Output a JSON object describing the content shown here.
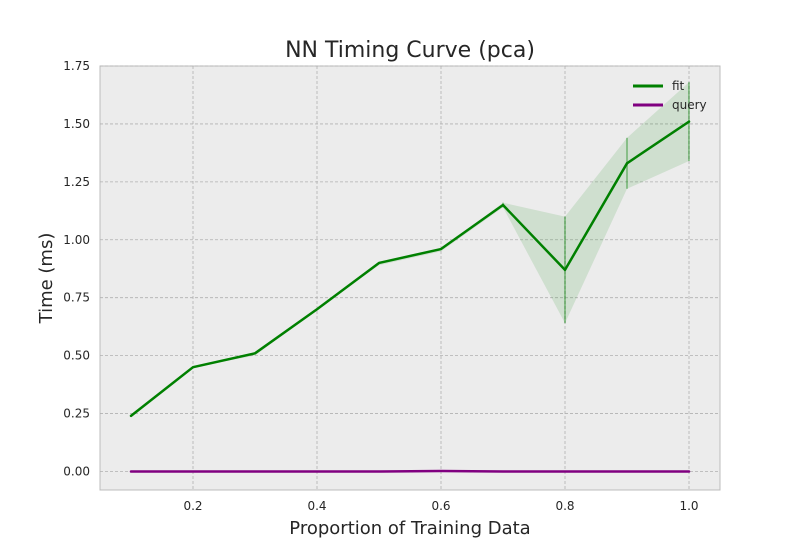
{
  "chart_data": {
    "type": "line",
    "title": "NN Timing Curve (pca)",
    "xlabel": "Proportion of Training Data",
    "ylabel": "Time (ms)",
    "xlim": [
      0.05,
      1.05
    ],
    "ylim": [
      -0.08,
      1.75
    ],
    "xticks": [
      0.2,
      0.4,
      0.6,
      0.8,
      1.0
    ],
    "xtick_labels": [
      "0.2",
      "0.4",
      "0.6",
      "0.8",
      "1.0"
    ],
    "yticks": [
      0.0,
      0.25,
      0.5,
      0.75,
      1.0,
      1.25,
      1.5,
      1.75
    ],
    "ytick_labels": [
      "0.00",
      "0.25",
      "0.50",
      "0.75",
      "1.00",
      "1.25",
      "1.50",
      "1.75"
    ],
    "grid": true,
    "legend_position": "top-right",
    "x": [
      0.1,
      0.2,
      0.3,
      0.4,
      0.5,
      0.6,
      0.7,
      0.8,
      0.9,
      1.0
    ],
    "series": [
      {
        "name": "fit",
        "color": "#008000",
        "values": [
          0.24,
          0.45,
          0.51,
          0.7,
          0.9,
          0.96,
          1.15,
          0.87,
          1.33,
          1.51
        ],
        "lower": [
          0.24,
          0.45,
          0.5,
          0.7,
          0.89,
          0.95,
          1.14,
          0.64,
          1.22,
          1.34
        ],
        "upper": [
          0.24,
          0.45,
          0.51,
          0.7,
          0.9,
          0.96,
          1.16,
          1.1,
          1.44,
          1.68
        ]
      },
      {
        "name": "query",
        "color": "#800080",
        "values": [
          0.0,
          0.0,
          0.0,
          0.0,
          0.0,
          0.002,
          0.0,
          0.0,
          0.0,
          0.0
        ]
      }
    ]
  }
}
